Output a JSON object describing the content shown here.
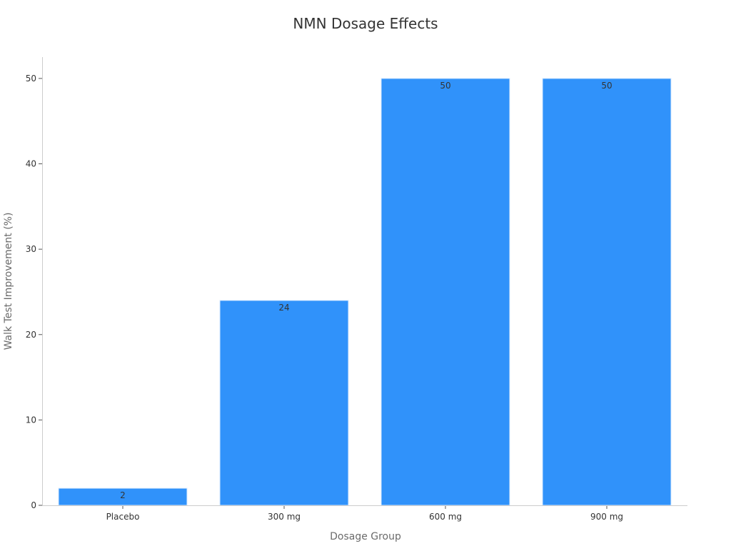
{
  "chart_data": {
    "type": "bar",
    "title": "NMN Dosage Effects",
    "xlabel": "Dosage Group",
    "ylabel": "Walk Test Improvement (%)",
    "categories": [
      "Placebo",
      "300 mg",
      "600 mg",
      "900 mg"
    ],
    "values": [
      2,
      24,
      50,
      50
    ],
    "ylim": [
      0,
      52.5
    ],
    "yticks": [
      0,
      10,
      20,
      30,
      40,
      50
    ],
    "grid": false,
    "bar_color": "#3092fa",
    "data_labels": true
  }
}
